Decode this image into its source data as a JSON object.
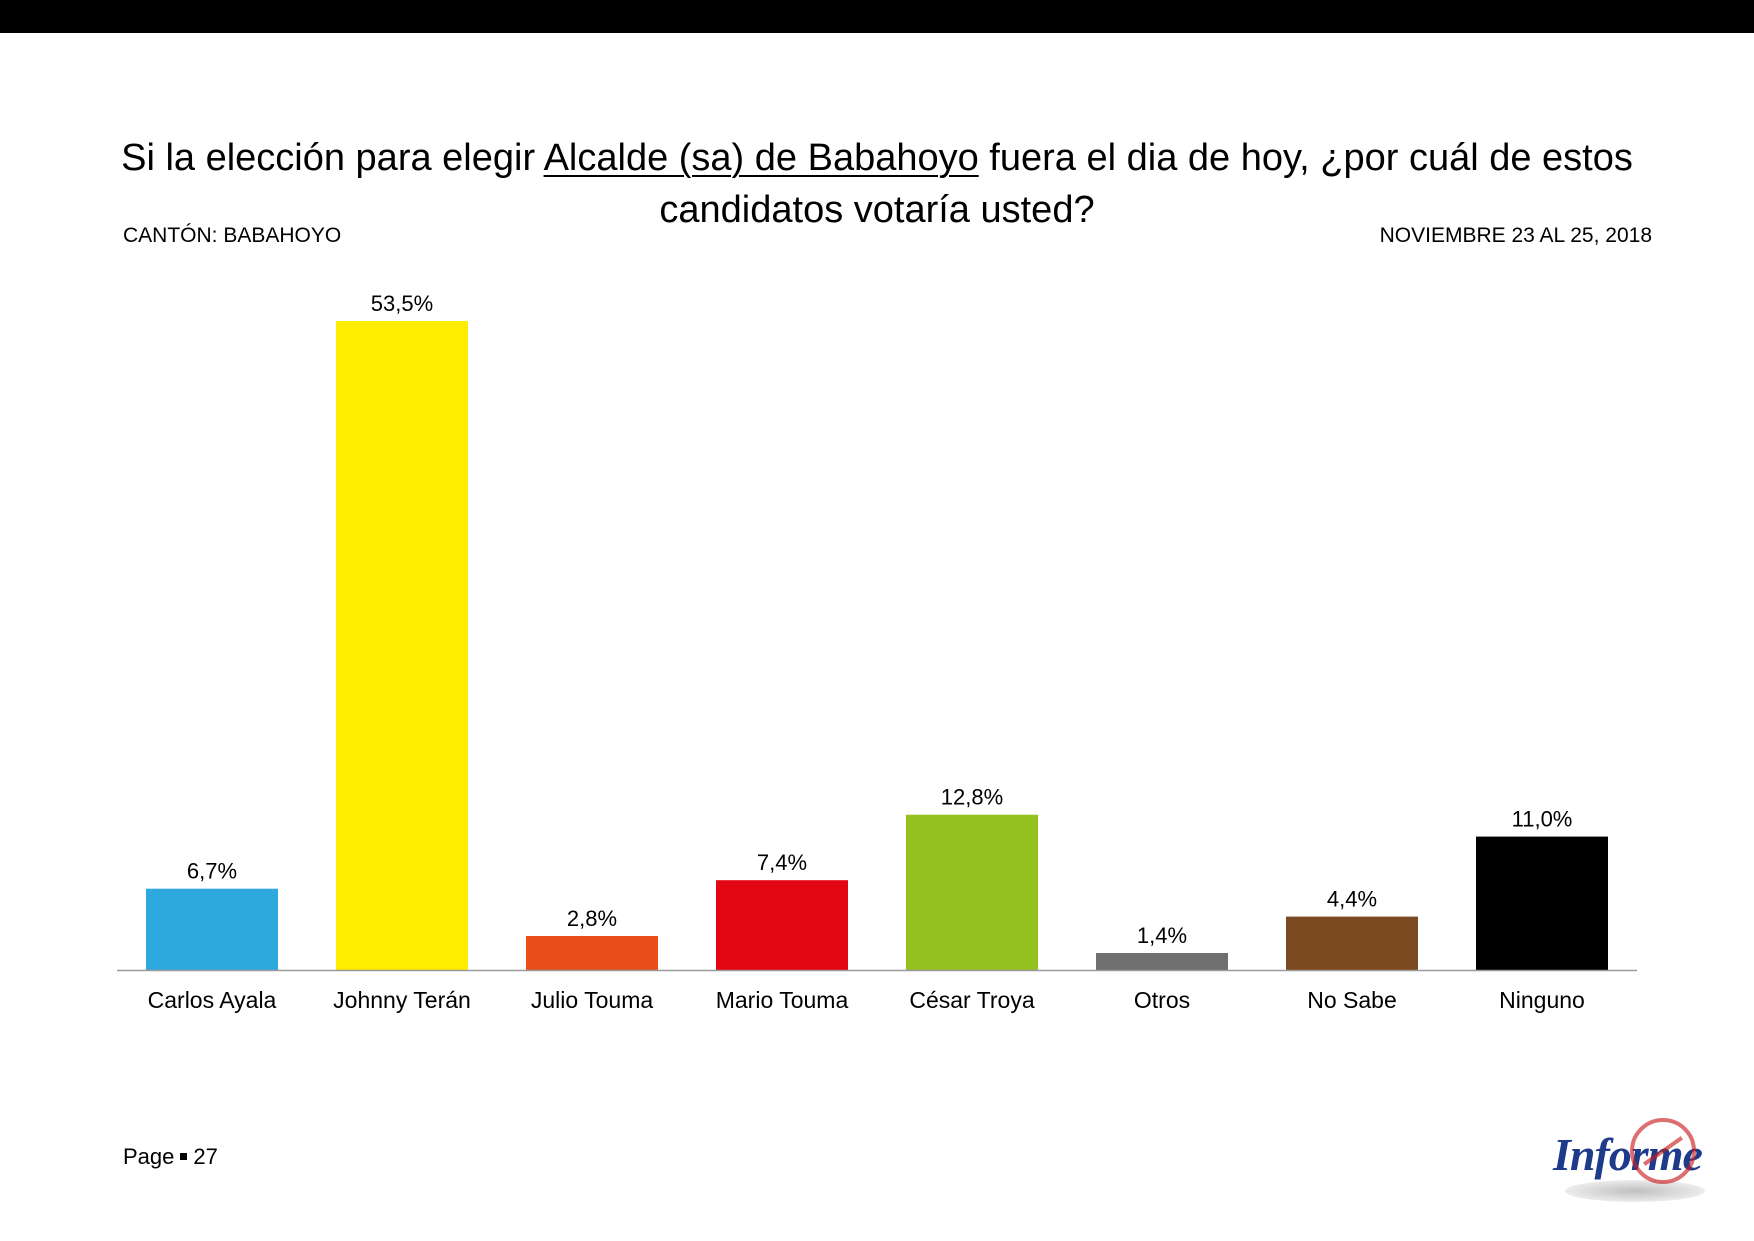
{
  "title": {
    "before": "Si la elección para elegir ",
    "underlined": "Alcalde (sa) de Babahoyo",
    "after": " fuera el dia de hoy, ¿por cuál de estos candidatos votaría usted?"
  },
  "meta": {
    "canton": "CANTÓN: BABAHOYO",
    "date": "NOVIEMBRE 23 AL 25, 2018"
  },
  "footer": {
    "page_label": "Page",
    "page_number": "27"
  },
  "logo": {
    "text": "Informe",
    "text_color": "#1e3a8a",
    "stamp_color": "#c81e1e"
  },
  "chart_data": {
    "type": "bar",
    "categories": [
      "Carlos Ayala",
      "Johnny Terán",
      "Julio Touma",
      "Mario Touma",
      "César Troya",
      "Otros",
      "No Sabe",
      "Ninguno"
    ],
    "values": [
      6.7,
      53.5,
      2.8,
      7.4,
      12.8,
      1.4,
      4.4,
      11.0
    ],
    "value_labels": [
      "6,7%",
      "53,5%",
      "2,8%",
      "7,4%",
      "12,8%",
      "1,4%",
      "4,4%",
      "11,0%"
    ],
    "colors": [
      "#2ea9e0",
      "#ffed00",
      "#e94e1b",
      "#e30613",
      "#95c11f",
      "#6f6f6f",
      "#7b4a21",
      "#000000"
    ],
    "ylim": [
      0,
      53.5
    ],
    "grid": false,
    "legend": "none"
  }
}
